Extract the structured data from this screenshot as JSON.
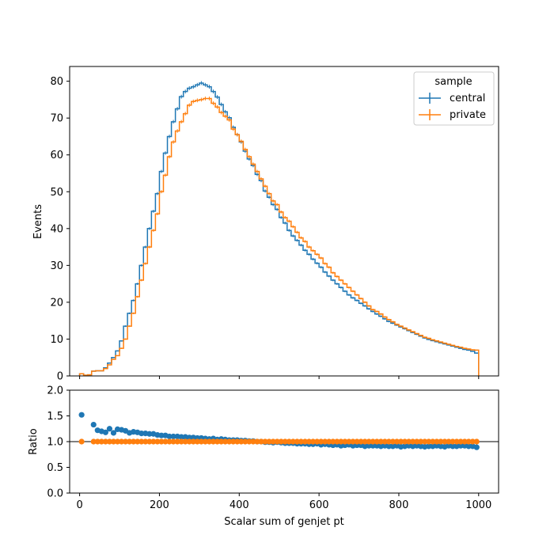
{
  "chart_data": [
    {
      "type": "line",
      "drawstyle": "step",
      "ylabel": "Events",
      "xlim": [
        -25,
        1050
      ],
      "ylim": [
        0,
        84
      ],
      "xticks": [
        0,
        200,
        400,
        600,
        800,
        1000
      ],
      "yticks": [
        0,
        10,
        20,
        30,
        40,
        50,
        60,
        70,
        80
      ],
      "tick_labels_y": [
        "0",
        "10",
        "20",
        "30",
        "40",
        "50",
        "60",
        "70",
        "80"
      ],
      "bin_edges": [
        0,
        10,
        20,
        30,
        40,
        50,
        60,
        70,
        80,
        90,
        100,
        110,
        120,
        130,
        140,
        150,
        160,
        170,
        180,
        190,
        200,
        210,
        220,
        230,
        240,
        250,
        260,
        270,
        280,
        290,
        300,
        310,
        320,
        330,
        340,
        350,
        360,
        370,
        380,
        390,
        400,
        410,
        420,
        430,
        440,
        450,
        460,
        470,
        480,
        490,
        500,
        510,
        520,
        530,
        540,
        550,
        560,
        570,
        580,
        590,
        600,
        610,
        620,
        630,
        640,
        650,
        660,
        670,
        680,
        690,
        700,
        710,
        720,
        730,
        740,
        750,
        760,
        770,
        780,
        790,
        800,
        810,
        820,
        830,
        840,
        850,
        860,
        870,
        880,
        890,
        900,
        910,
        920,
        930,
        940,
        950,
        960,
        970,
        980,
        990,
        1000
      ],
      "legend": {
        "title": "sample",
        "position": "top-right"
      },
      "series": [
        {
          "name": "central",
          "color": "#1f77b4",
          "values": [
            0.6,
            0.2,
            0.3,
            1.3,
            1.4,
            1.4,
            2.2,
            3.5,
            5.0,
            6.8,
            9.5,
            13.5,
            17.0,
            20.5,
            25.0,
            30.0,
            35.0,
            40.0,
            44.7,
            49.5,
            55.5,
            60.5,
            65.0,
            69.0,
            72.5,
            75.8,
            77.2,
            78.1,
            78.5,
            79.0,
            79.5,
            79.0,
            78.5,
            77.2,
            75.7,
            73.7,
            71.7,
            70.1,
            67.5,
            65.5,
            63.5,
            61.0,
            58.9,
            57.1,
            54.7,
            53.0,
            50.2,
            48.5,
            46.5,
            45.2,
            43.0,
            41.5,
            39.5,
            38.0,
            36.8,
            35.5,
            34.1,
            33.0,
            31.7,
            30.6,
            29.5,
            28.2,
            27.1,
            26.0,
            25.0,
            24.0,
            23.0,
            22.0,
            21.2,
            20.5,
            19.7,
            19.0,
            18.2,
            17.5,
            16.8,
            16.2,
            15.5,
            14.8,
            14.3,
            13.8,
            13.3,
            12.8,
            12.3,
            11.8,
            11.3,
            10.8,
            10.3,
            9.9,
            9.6,
            9.3,
            9.0,
            8.7,
            8.4,
            8.1,
            7.8,
            7.5,
            7.2,
            7.0,
            6.7,
            6.2
          ]
        },
        {
          "name": "private",
          "color": "#ff7f0e",
          "values": [
            0.6,
            0.2,
            0.3,
            1.3,
            1.4,
            1.4,
            2.0,
            3.0,
            4.5,
            5.5,
            7.5,
            10.0,
            13.5,
            17.0,
            21.5,
            26.0,
            30.5,
            35.0,
            39.5,
            44.0,
            50.0,
            54.5,
            59.5,
            63.5,
            66.5,
            69.0,
            71.2,
            73.5,
            74.5,
            74.8,
            75.0,
            75.3,
            75.3,
            74.0,
            73.0,
            71.5,
            70.5,
            69.5,
            67.0,
            65.5,
            63.7,
            61.5,
            59.5,
            57.5,
            55.5,
            53.5,
            51.5,
            49.5,
            47.5,
            46.5,
            44.5,
            43.0,
            42.0,
            40.5,
            39.0,
            37.5,
            36.5,
            35.0,
            34.0,
            33.0,
            32.0,
            30.5,
            29.5,
            28.0,
            27.0,
            26.0,
            25.0,
            24.0,
            23.0,
            22.0,
            21.0,
            20.0,
            19.0,
            18.0,
            17.5,
            16.8,
            16.0,
            15.3,
            14.7,
            14.0,
            13.5,
            13.0,
            12.5,
            12.0,
            11.5,
            11.0,
            10.5,
            10.2,
            9.8,
            9.5,
            9.2,
            8.9,
            8.6,
            8.3,
            8.0,
            7.8,
            7.5,
            7.3,
            7.1,
            7.0
          ]
        }
      ]
    },
    {
      "type": "scatter",
      "xlabel": "Scalar sum of genjet pt",
      "ylabel": "Ratio",
      "xlim": [
        -25,
        1050
      ],
      "ylim": [
        0,
        2
      ],
      "xticks": [
        0,
        200,
        400,
        600,
        800,
        1000
      ],
      "tick_labels_x": [
        "0",
        "200",
        "400",
        "600",
        "800",
        "1000"
      ],
      "yticks": [
        0,
        0.5,
        1.0,
        1.5,
        2.0
      ],
      "tick_labels_y": [
        "0.0",
        "0.5",
        "1.0",
        "1.5",
        "2.0"
      ],
      "reference_line": 1.0,
      "series": [
        {
          "name": "central",
          "color": "#1f77b4",
          "x": [
            5,
            35,
            45,
            55,
            65,
            75,
            85,
            95,
            105,
            115,
            125,
            135,
            145,
            155,
            165,
            175,
            185,
            195,
            205,
            215,
            225,
            235,
            245,
            255,
            265,
            275,
            285,
            295,
            305,
            315,
            325,
            335,
            345,
            355,
            365,
            375,
            385,
            395,
            405,
            415,
            425,
            435,
            445,
            455,
            465,
            475,
            485,
            495,
            505,
            515,
            525,
            535,
            545,
            555,
            565,
            575,
            585,
            595,
            605,
            615,
            625,
            635,
            645,
            655,
            665,
            675,
            685,
            695,
            705,
            715,
            725,
            735,
            745,
            755,
            765,
            775,
            785,
            795,
            805,
            815,
            825,
            835,
            845,
            855,
            865,
            875,
            885,
            895,
            905,
            915,
            925,
            935,
            945,
            955,
            965,
            975,
            985,
            995
          ],
          "y": [
            1.52,
            1.33,
            1.22,
            1.2,
            1.18,
            1.25,
            1.17,
            1.24,
            1.23,
            1.21,
            1.17,
            1.19,
            1.18,
            1.16,
            1.16,
            1.15,
            1.15,
            1.13,
            1.12,
            1.12,
            1.1,
            1.1,
            1.1,
            1.09,
            1.09,
            1.08,
            1.08,
            1.07,
            1.07,
            1.06,
            1.05,
            1.06,
            1.04,
            1.05,
            1.04,
            1.03,
            1.03,
            1.03,
            1.02,
            1.02,
            1.01,
            1.01,
            1.0,
            1.0,
            0.99,
            0.99,
            0.98,
            0.99,
            0.98,
            0.97,
            0.97,
            0.97,
            0.96,
            0.96,
            0.96,
            0.95,
            0.95,
            0.96,
            0.94,
            0.95,
            0.94,
            0.93,
            0.94,
            0.92,
            0.93,
            0.94,
            0.92,
            0.93,
            0.93,
            0.91,
            0.92,
            0.92,
            0.92,
            0.91,
            0.92,
            0.91,
            0.91,
            0.92,
            0.9,
            0.91,
            0.92,
            0.91,
            0.92,
            0.91,
            0.9,
            0.91,
            0.91,
            0.92,
            0.91,
            0.9,
            0.92,
            0.91,
            0.91,
            0.92,
            0.92,
            0.91,
            0.91,
            0.89
          ]
        },
        {
          "name": "private",
          "color": "#ff7f0e",
          "x": [
            5,
            35,
            45,
            55,
            65,
            75,
            85,
            95,
            105,
            115,
            125,
            135,
            145,
            155,
            165,
            175,
            185,
            195,
            205,
            215,
            225,
            235,
            245,
            255,
            265,
            275,
            285,
            295,
            305,
            315,
            325,
            335,
            345,
            355,
            365,
            375,
            385,
            395,
            405,
            415,
            425,
            435,
            445,
            455,
            465,
            475,
            485,
            495,
            505,
            515,
            525,
            535,
            545,
            555,
            565,
            575,
            585,
            595,
            605,
            615,
            625,
            635,
            645,
            655,
            665,
            675,
            685,
            695,
            705,
            715,
            725,
            735,
            745,
            755,
            765,
            775,
            785,
            795,
            805,
            815,
            825,
            835,
            845,
            855,
            865,
            875,
            885,
            895,
            905,
            915,
            925,
            935,
            945,
            955,
            965,
            975,
            985,
            995
          ],
          "y": [
            1.0,
            1.0,
            1.0,
            1.0,
            1.0,
            1.0,
            1.0,
            1.0,
            1.0,
            1.0,
            1.0,
            1.0,
            1.0,
            1.0,
            1.0,
            1.0,
            1.0,
            1.0,
            1.0,
            1.0,
            1.0,
            1.0,
            1.0,
            1.0,
            1.0,
            1.0,
            1.0,
            1.0,
            1.0,
            1.0,
            1.0,
            1.0,
            1.0,
            1.0,
            1.0,
            1.0,
            1.0,
            1.0,
            1.0,
            1.0,
            1.0,
            1.0,
            1.0,
            1.0,
            1.0,
            1.0,
            1.0,
            1.0,
            1.0,
            1.0,
            1.0,
            1.0,
            1.0,
            1.0,
            1.0,
            1.0,
            1.0,
            1.0,
            1.0,
            1.0,
            1.0,
            1.0,
            1.0,
            1.0,
            1.0,
            1.0,
            1.0,
            1.0,
            1.0,
            1.0,
            1.0,
            1.0,
            1.0,
            1.0,
            1.0,
            1.0,
            1.0,
            1.0,
            1.0,
            1.0,
            1.0,
            1.0,
            1.0,
            1.0,
            1.0,
            1.0,
            1.0,
            1.0,
            1.0,
            1.0,
            1.0,
            1.0,
            1.0,
            1.0,
            1.0,
            1.0,
            1.0,
            1.0
          ]
        }
      ]
    }
  ]
}
